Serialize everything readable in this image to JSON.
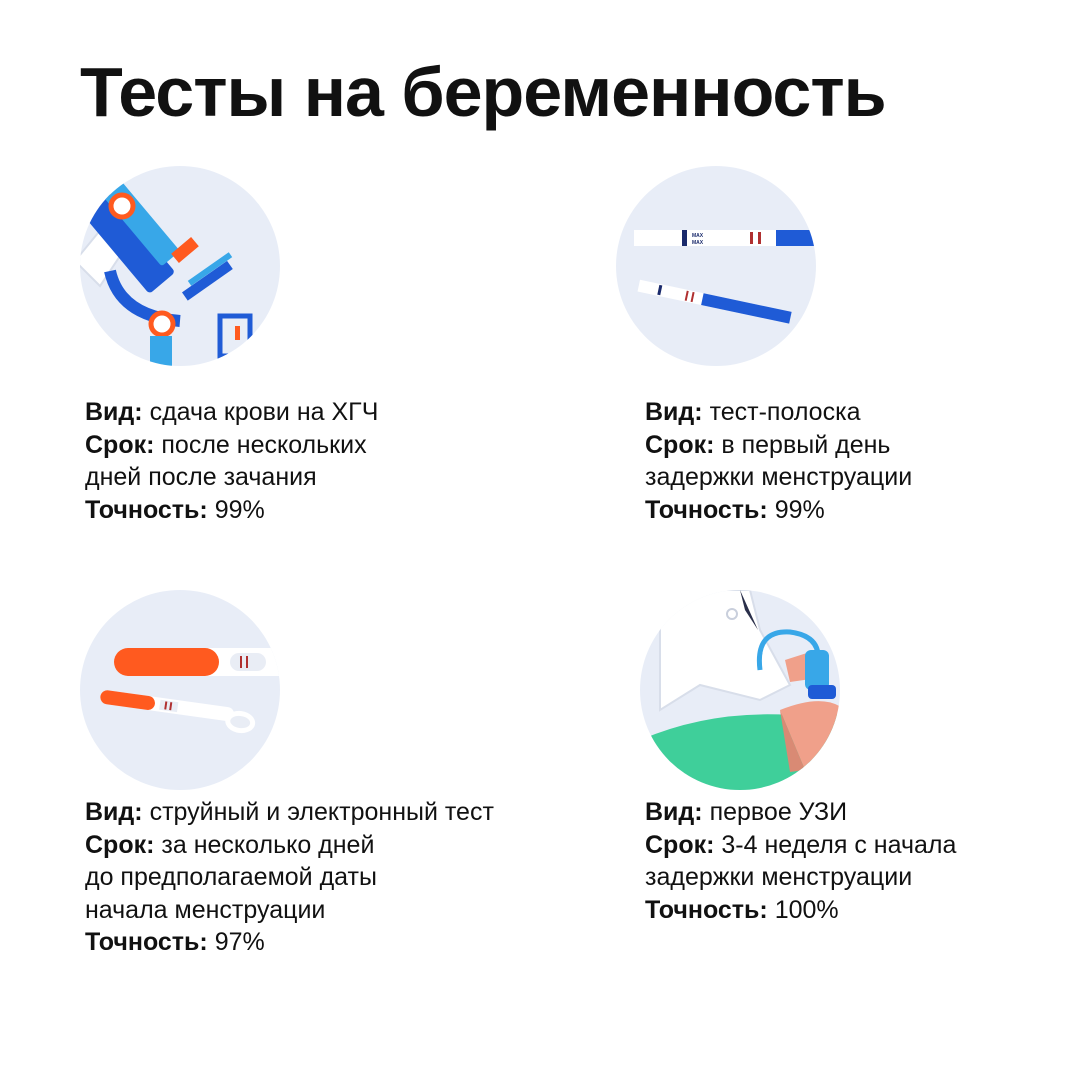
{
  "title": "Тесты на беременность",
  "labels": {
    "type": "Вид:",
    "term": "Срок:",
    "accuracy": "Точность:"
  },
  "strip_marker": "MAX",
  "colors": {
    "circle_bg": "#e8edf7",
    "blue": "#1f5bd6",
    "light_blue": "#38a7e8",
    "orange": "#ff5a1f",
    "green": "#3fcf9a",
    "pink": "#f0a08a",
    "red_line": "#b03030"
  },
  "cards": [
    {
      "icon": "microscope-icon",
      "type": "сдача крови на ХГЧ",
      "term_lines": [
        "после нескольких",
        "дней после зачания"
      ],
      "accuracy": "99%"
    },
    {
      "icon": "test-strip-icon",
      "type": "тест-полоска",
      "term_lines": [
        "в первый день",
        "задержки менструации"
      ],
      "accuracy": "99%"
    },
    {
      "icon": "stream-test-icon",
      "type": "струйный и электронный тест",
      "term_lines": [
        "за несколько дней",
        "до предполагаемой даты",
        "начала менструации"
      ],
      "accuracy": "97%"
    },
    {
      "icon": "ultrasound-icon",
      "type": "первое УЗИ",
      "term_lines": [
        "3-4 неделя с начала",
        "задержки менструации"
      ],
      "accuracy": "100%"
    }
  ]
}
